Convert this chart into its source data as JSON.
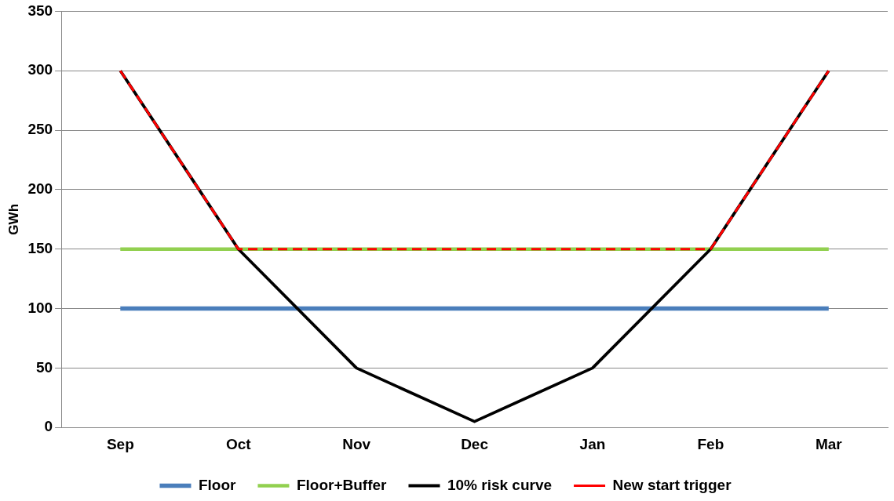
{
  "chart_data": {
    "type": "line",
    "ylabel": "GWh",
    "categories": [
      "Sep",
      "Oct",
      "Nov",
      "Dec",
      "Jan",
      "Feb",
      "Mar"
    ],
    "series": [
      {
        "name": "Floor",
        "color": "#4a7ebb",
        "values": [
          100,
          100,
          100,
          100,
          100,
          100,
          100
        ]
      },
      {
        "name": "Floor+Buffer",
        "color": "#92d050",
        "values": [
          150,
          150,
          150,
          150,
          150,
          150,
          150
        ]
      },
      {
        "name": "10% risk curve",
        "color": "#000000",
        "values": [
          300,
          150,
          50,
          5,
          50,
          150,
          300
        ]
      },
      {
        "name": "New start trigger",
        "color": "#ff0000",
        "line_style": "dashed",
        "values": [
          300,
          150,
          150,
          150,
          150,
          150,
          300
        ]
      }
    ],
    "ylim": [
      0,
      350
    ],
    "yticks": [
      0,
      50,
      100,
      150,
      200,
      250,
      300,
      350
    ],
    "grid": "y",
    "legend": "bottom"
  }
}
